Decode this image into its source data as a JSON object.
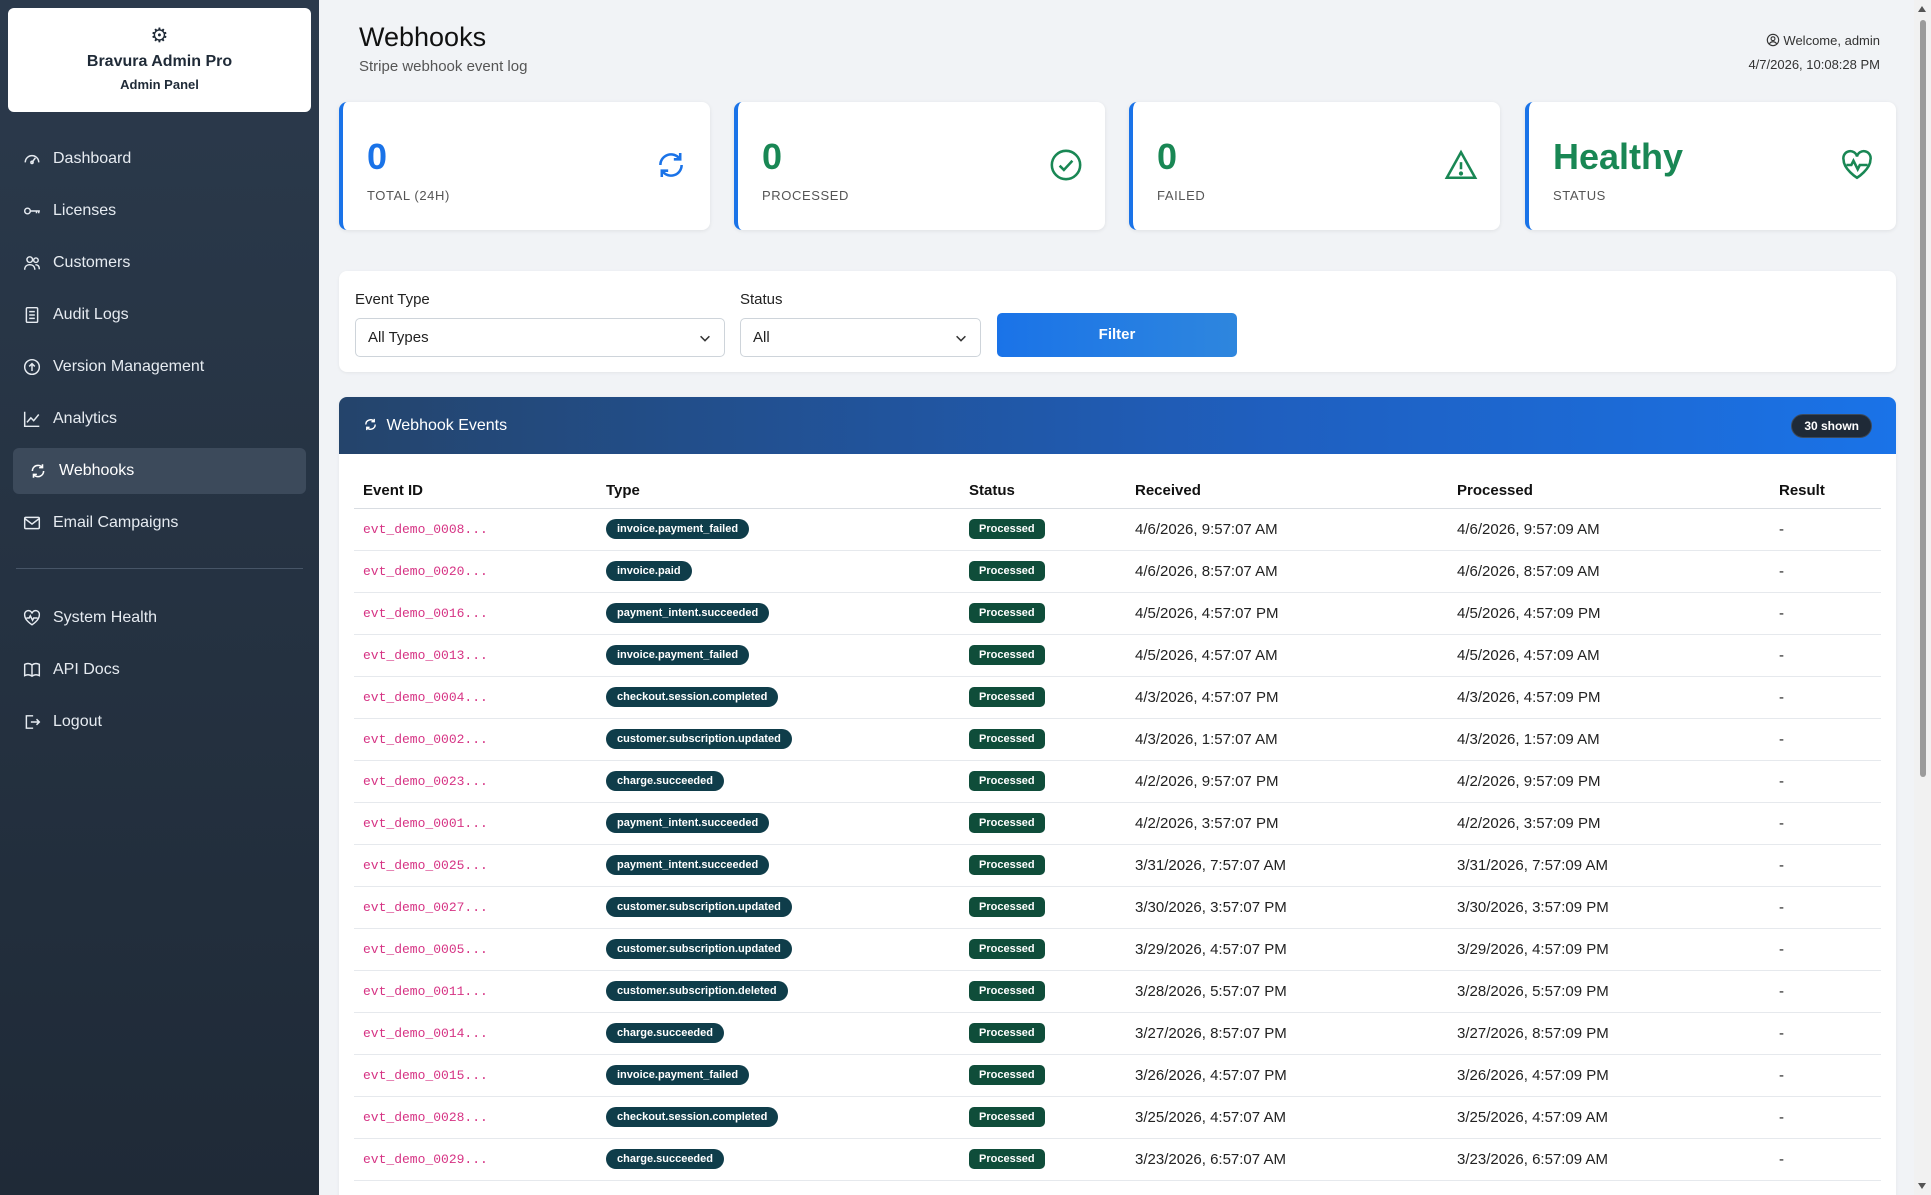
{
  "brand": {
    "name": "Bravura Admin Pro",
    "subtitle": "Admin Panel",
    "icon": "gear-icon"
  },
  "sidebar": {
    "items": [
      {
        "label": "Dashboard",
        "icon": "dashboard-icon"
      },
      {
        "label": "Licenses",
        "icon": "key-icon"
      },
      {
        "label": "Customers",
        "icon": "users-icon"
      },
      {
        "label": "Audit Logs",
        "icon": "journal-icon"
      },
      {
        "label": "Version Management",
        "icon": "upload-circle-icon"
      },
      {
        "label": "Analytics",
        "icon": "chart-line-icon"
      },
      {
        "label": "Webhooks",
        "icon": "refresh-icon",
        "active": true
      },
      {
        "label": "Email Campaigns",
        "icon": "envelope-icon"
      }
    ],
    "secondary": [
      {
        "label": "System Health",
        "icon": "heart-pulse-icon"
      },
      {
        "label": "API Docs",
        "icon": "book-icon"
      },
      {
        "label": "Logout",
        "icon": "logout-icon"
      }
    ]
  },
  "header": {
    "title": "Webhooks",
    "subtitle": "Stripe webhook event log",
    "welcome": "Welcome, admin",
    "datetime": "4/7/2026, 10:08:28 PM"
  },
  "stats": [
    {
      "value": "0",
      "label": "TOTAL (24H)",
      "color": "#1a73e8",
      "icon": "refresh-icon"
    },
    {
      "value": "0",
      "label": "PROCESSED",
      "color": "#198754",
      "icon": "check-circle-icon"
    },
    {
      "value": "0",
      "label": "FAILED",
      "color": "#198754",
      "icon": "warning-triangle-icon"
    },
    {
      "value": "Healthy",
      "label": "STATUS",
      "color": "#198754",
      "icon": "heart-pulse-icon"
    }
  ],
  "filters": {
    "event_type_label": "Event Type",
    "event_type_value": "All Types",
    "status_label": "Status",
    "status_value": "All",
    "button_label": "Filter"
  },
  "events": {
    "title": "Webhook Events",
    "shown_badge": "30 shown",
    "columns": [
      "Event ID",
      "Type",
      "Status",
      "Received",
      "Processed",
      "Result"
    ],
    "rows": [
      {
        "id": "evt_demo_0008...",
        "type": "invoice.payment_failed",
        "status": "Processed",
        "received": "4/6/2026, 9:57:07 AM",
        "processed": "4/6/2026, 9:57:09 AM",
        "result": "-"
      },
      {
        "id": "evt_demo_0020...",
        "type": "invoice.paid",
        "status": "Processed",
        "received": "4/6/2026, 8:57:07 AM",
        "processed": "4/6/2026, 8:57:09 AM",
        "result": "-"
      },
      {
        "id": "evt_demo_0016...",
        "type": "payment_intent.succeeded",
        "status": "Processed",
        "received": "4/5/2026, 4:57:07 PM",
        "processed": "4/5/2026, 4:57:09 PM",
        "result": "-"
      },
      {
        "id": "evt_demo_0013...",
        "type": "invoice.payment_failed",
        "status": "Processed",
        "received": "4/5/2026, 4:57:07 AM",
        "processed": "4/5/2026, 4:57:09 AM",
        "result": "-"
      },
      {
        "id": "evt_demo_0004...",
        "type": "checkout.session.completed",
        "status": "Processed",
        "received": "4/3/2026, 4:57:07 PM",
        "processed": "4/3/2026, 4:57:09 PM",
        "result": "-"
      },
      {
        "id": "evt_demo_0002...",
        "type": "customer.subscription.updated",
        "status": "Processed",
        "received": "4/3/2026, 1:57:07 AM",
        "processed": "4/3/2026, 1:57:09 AM",
        "result": "-"
      },
      {
        "id": "evt_demo_0023...",
        "type": "charge.succeeded",
        "status": "Processed",
        "received": "4/2/2026, 9:57:07 PM",
        "processed": "4/2/2026, 9:57:09 PM",
        "result": "-"
      },
      {
        "id": "evt_demo_0001...",
        "type": "payment_intent.succeeded",
        "status": "Processed",
        "received": "4/2/2026, 3:57:07 PM",
        "processed": "4/2/2026, 3:57:09 PM",
        "result": "-"
      },
      {
        "id": "evt_demo_0025...",
        "type": "payment_intent.succeeded",
        "status": "Processed",
        "received": "3/31/2026, 7:57:07 AM",
        "processed": "3/31/2026, 7:57:09 AM",
        "result": "-"
      },
      {
        "id": "evt_demo_0027...",
        "type": "customer.subscription.updated",
        "status": "Processed",
        "received": "3/30/2026, 3:57:07 PM",
        "processed": "3/30/2026, 3:57:09 PM",
        "result": "-"
      },
      {
        "id": "evt_demo_0005...",
        "type": "customer.subscription.updated",
        "status": "Processed",
        "received": "3/29/2026, 4:57:07 PM",
        "processed": "3/29/2026, 4:57:09 PM",
        "result": "-"
      },
      {
        "id": "evt_demo_0011...",
        "type": "customer.subscription.deleted",
        "status": "Processed",
        "received": "3/28/2026, 5:57:07 PM",
        "processed": "3/28/2026, 5:57:09 PM",
        "result": "-"
      },
      {
        "id": "evt_demo_0014...",
        "type": "charge.succeeded",
        "status": "Processed",
        "received": "3/27/2026, 8:57:07 PM",
        "processed": "3/27/2026, 8:57:09 PM",
        "result": "-"
      },
      {
        "id": "evt_demo_0015...",
        "type": "invoice.payment_failed",
        "status": "Processed",
        "received": "3/26/2026, 4:57:07 PM",
        "processed": "3/26/2026, 4:57:09 PM",
        "result": "-"
      },
      {
        "id": "evt_demo_0028...",
        "type": "checkout.session.completed",
        "status": "Processed",
        "received": "3/25/2026, 4:57:07 AM",
        "processed": "3/25/2026, 4:57:09 AM",
        "result": "-"
      },
      {
        "id": "evt_demo_0029...",
        "type": "charge.succeeded",
        "status": "Processed",
        "received": "3/23/2026, 6:57:07 AM",
        "processed": "3/23/2026, 6:57:09 AM",
        "result": "-"
      }
    ]
  }
}
